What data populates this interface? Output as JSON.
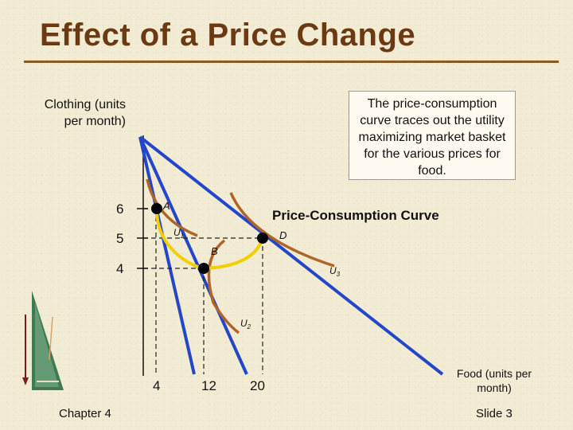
{
  "slide": {
    "title": "Effect of a Price Change",
    "footer_left": "Chapter 4",
    "footer_right": "Slide 3"
  },
  "axes": {
    "y_label": "Clothing (units per month)",
    "x_label": "Food (units per month)",
    "y_ticks": [
      "6",
      "5",
      "4"
    ],
    "x_ticks": [
      "4",
      "12",
      "20"
    ]
  },
  "note": {
    "text": "The price-consumption curve traces out the utility maximizing market basket for the various prices for food."
  },
  "curve_label": "Price-Consumption Curve",
  "points": {
    "a": "A",
    "b": "B",
    "d": "D"
  },
  "indifference_curves": {
    "u1": {
      "letter": "U",
      "sub": "1"
    },
    "u2": {
      "letter": "U",
      "sub": "2"
    },
    "u3": {
      "letter": "U",
      "sub": "3"
    }
  },
  "colors": {
    "title": "#6b3a12",
    "budget_line": "#2347c8",
    "indifference_curve": "#b0642a",
    "price_consumption_curve": "#f0d000",
    "point": "#000000"
  }
}
